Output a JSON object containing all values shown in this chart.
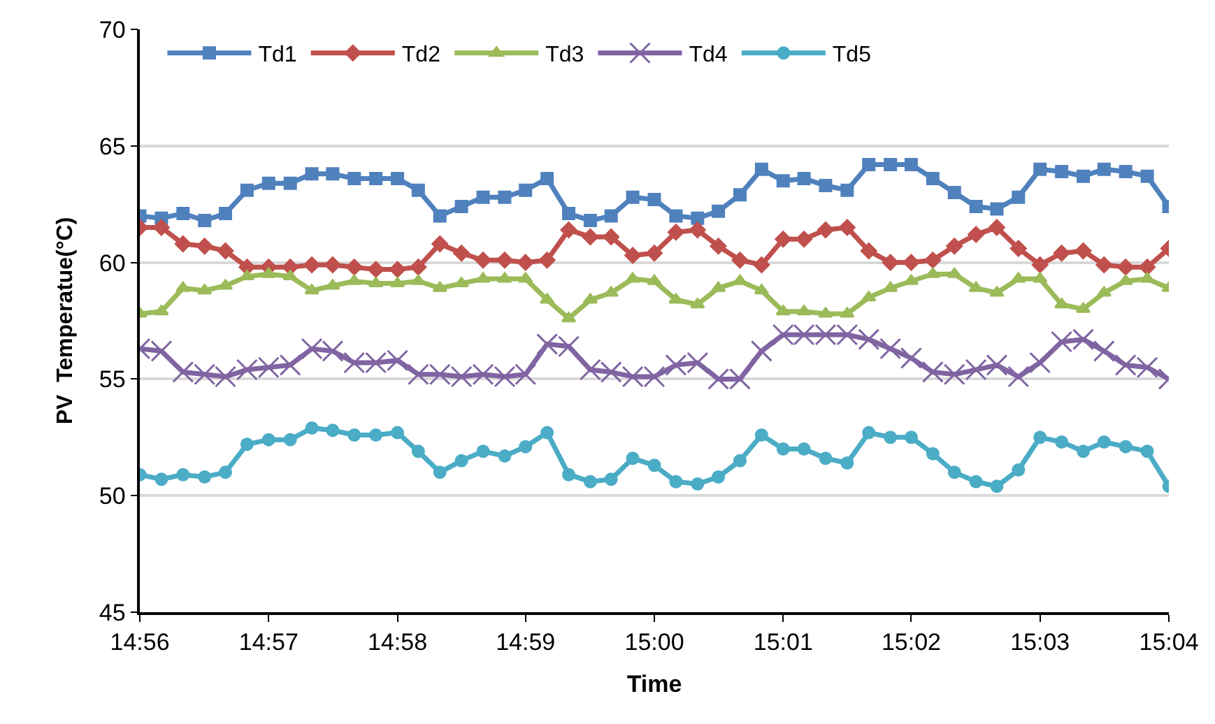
{
  "chart_data": {
    "type": "line",
    "xlabel": "Time",
    "ylabel": "PV  Temperatue(°C)",
    "x": [
      14.9333,
      14.9361,
      14.9389,
      14.9417,
      14.9444,
      14.9472,
      14.95,
      14.9528,
      14.9556,
      14.9583,
      14.9611,
      14.9639,
      14.9667,
      14.9694,
      14.9722,
      14.975,
      14.9778,
      14.9806,
      14.9833,
      14.9861,
      14.9889,
      14.9917,
      14.9944,
      14.9972,
      15.0,
      15.0028,
      15.0056,
      15.0083,
      15.0111,
      15.0139,
      15.0167,
      15.0194,
      15.0222,
      15.025,
      15.0278,
      15.0306,
      15.0333,
      15.0361,
      15.0389,
      15.0417,
      15.0444,
      15.0472,
      15.05,
      15.0528,
      15.0556,
      15.0583,
      15.0611,
      15.0639,
      15.0667
    ],
    "xlim": [
      14.9333,
      15.0667
    ],
    "xticks": [
      {
        "value": 14.9333,
        "label": "14:56"
      },
      {
        "value": 14.95,
        "label": "14:57"
      },
      {
        "value": 14.9667,
        "label": "14:58"
      },
      {
        "value": 14.9833,
        "label": "14:59"
      },
      {
        "value": 15.0,
        "label": "15:00"
      },
      {
        "value": 15.0167,
        "label": "15:01"
      },
      {
        "value": 15.0333,
        "label": "15:02"
      },
      {
        "value": 15.05,
        "label": "15:03"
      },
      {
        "value": 15.0667,
        "label": "15:04"
      }
    ],
    "ylim": [
      45,
      70
    ],
    "yticks": [
      45,
      50,
      55,
      60,
      65,
      70
    ],
    "grid": "y",
    "legend": "top left",
    "series": [
      {
        "name": "Td1",
        "color": "#4f81bd",
        "marker": "square",
        "values": [
          62.0,
          61.9,
          62.1,
          61.8,
          62.1,
          63.1,
          63.4,
          63.4,
          63.8,
          63.8,
          63.6,
          63.6,
          63.6,
          63.1,
          62.0,
          62.4,
          62.8,
          62.8,
          63.1,
          63.6,
          62.1,
          61.8,
          62.0,
          62.8,
          62.7,
          62.0,
          61.9,
          62.2,
          62.9,
          64.0,
          63.5,
          63.6,
          63.3,
          63.1,
          64.2,
          64.2,
          64.2,
          63.6,
          63.0,
          62.4,
          62.3,
          62.8,
          64.0,
          63.9,
          63.7,
          64.0,
          63.9,
          63.7,
          62.4
        ]
      },
      {
        "name": "Td2",
        "color": "#c0504d",
        "marker": "diamond",
        "values": [
          61.5,
          61.5,
          60.8,
          60.7,
          60.5,
          59.8,
          59.8,
          59.8,
          59.9,
          59.9,
          59.8,
          59.7,
          59.7,
          59.8,
          60.8,
          60.4,
          60.1,
          60.1,
          60.0,
          60.1,
          61.4,
          61.1,
          61.1,
          60.3,
          60.4,
          61.3,
          61.4,
          60.7,
          60.1,
          59.9,
          61.0,
          61.0,
          61.4,
          61.5,
          60.5,
          60.0,
          60.0,
          60.1,
          60.7,
          61.2,
          61.5,
          60.6,
          59.9,
          60.4,
          60.5,
          59.9,
          59.8,
          59.8,
          60.6
        ]
      },
      {
        "name": "Td3",
        "color": "#9bbb59",
        "marker": "triangle",
        "values": [
          57.8,
          57.9,
          58.9,
          58.8,
          59.0,
          59.4,
          59.5,
          59.4,
          58.8,
          59.0,
          59.2,
          59.1,
          59.1,
          59.2,
          58.9,
          59.1,
          59.3,
          59.3,
          59.3,
          58.4,
          57.6,
          58.4,
          58.7,
          59.3,
          59.2,
          58.4,
          58.2,
          58.9,
          59.2,
          58.8,
          57.9,
          57.9,
          57.8,
          57.8,
          58.5,
          58.9,
          59.2,
          59.5,
          59.5,
          58.9,
          58.7,
          59.3,
          59.3,
          58.2,
          58.0,
          58.7,
          59.2,
          59.3,
          58.9
        ]
      },
      {
        "name": "Td4",
        "color": "#8064a2",
        "marker": "cross",
        "values": [
          56.3,
          56.2,
          55.3,
          55.2,
          55.1,
          55.4,
          55.5,
          55.6,
          56.3,
          56.2,
          55.7,
          55.7,
          55.8,
          55.2,
          55.2,
          55.1,
          55.2,
          55.1,
          55.2,
          56.5,
          56.4,
          55.4,
          55.3,
          55.1,
          55.1,
          55.6,
          55.7,
          55.0,
          55.0,
          56.2,
          56.9,
          56.9,
          56.9,
          56.9,
          56.7,
          56.3,
          55.9,
          55.3,
          55.2,
          55.4,
          55.6,
          55.1,
          55.7,
          56.6,
          56.7,
          56.2,
          55.6,
          55.5,
          55.0
        ]
      },
      {
        "name": "Td5",
        "color": "#4bacc6",
        "marker": "circle",
        "values": [
          50.9,
          50.7,
          50.9,
          50.8,
          51.0,
          52.2,
          52.4,
          52.4,
          52.9,
          52.8,
          52.6,
          52.6,
          52.7,
          51.9,
          51.0,
          51.5,
          51.9,
          51.7,
          52.1,
          52.7,
          50.9,
          50.6,
          50.7,
          51.6,
          51.3,
          50.6,
          50.5,
          50.8,
          51.5,
          52.6,
          52.0,
          52.0,
          51.6,
          51.4,
          52.7,
          52.5,
          52.5,
          51.8,
          51.0,
          50.6,
          50.4,
          51.1,
          52.5,
          52.3,
          51.9,
          52.3,
          52.1,
          51.9,
          50.4
        ]
      }
    ]
  }
}
